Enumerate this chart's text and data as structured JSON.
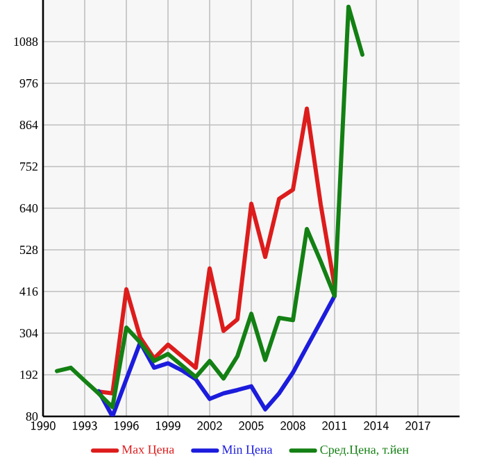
{
  "chart_data": {
    "type": "line",
    "x": [
      1991,
      1992,
      1993,
      1994,
      1995,
      1996,
      1997,
      1998,
      1999,
      2000,
      2001,
      2002,
      2003,
      2004,
      2005,
      2006,
      2007,
      2008,
      2009,
      2010,
      2011,
      2012,
      2013
    ],
    "series": [
      {
        "name": "Max Цена",
        "color": "#dd1c1c",
        "values": [
          null,
          null,
          null,
          147,
          142,
          422,
          292,
          236,
          273,
          242,
          211,
          478,
          310,
          341,
          652,
          509,
          665,
          690,
          908,
          650,
          430,
          null,
          null
        ]
      },
      {
        "name": "Min Цена",
        "color": "#1c1cdd",
        "values": [
          null,
          null,
          null,
          148,
          80,
          180,
          279,
          211,
          223,
          204,
          180,
          127,
          142,
          151,
          161,
          99,
          142,
          198,
          267,
          335,
          404,
          null,
          null
        ]
      },
      {
        "name": "Сред.Цена, т.йен",
        "color": "#138013",
        "values": [
          202,
          211,
          176,
          142,
          105,
          319,
          279,
          229,
          248,
          217,
          186,
          229,
          182,
          242,
          356,
          232,
          345,
          339,
          584,
          497,
          404,
          1182,
          1053
        ]
      }
    ],
    "xlim": [
      1990,
      2020
    ],
    "xticks": [
      1990,
      1993,
      1996,
      1999,
      2002,
      2005,
      2008,
      2011,
      2014,
      2017
    ],
    "ylim": [
      80,
      1200
    ],
    "yticks": [
      80,
      192,
      304,
      416,
      528,
      640,
      752,
      864,
      976,
      1088
    ],
    "grid": true,
    "legend": "bottom",
    "marker": "none",
    "line_style": "solid"
  }
}
